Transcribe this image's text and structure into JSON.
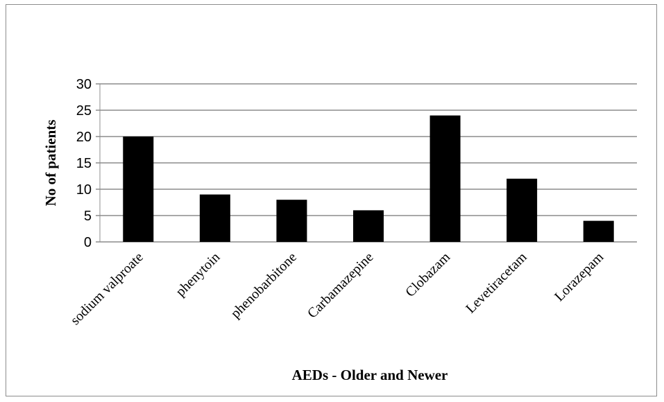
{
  "chart_data": {
    "type": "bar",
    "categories": [
      "sodium valproate",
      "phenytoin",
      "phenobarbitone",
      "Carbamazepine",
      "Clobazam",
      "Levetiracetam",
      "Lorazepam"
    ],
    "values": [
      20,
      9,
      8,
      6,
      24,
      12,
      4
    ],
    "xlabel": "AEDs - Older and Newer",
    "ylabel": "No of patients",
    "ylim": [
      0,
      30
    ],
    "yticks": [
      0,
      5,
      10,
      15,
      20,
      25,
      30
    ],
    "grid": true,
    "bar_color": "#000000",
    "grid_color": "#8c8c8c"
  }
}
